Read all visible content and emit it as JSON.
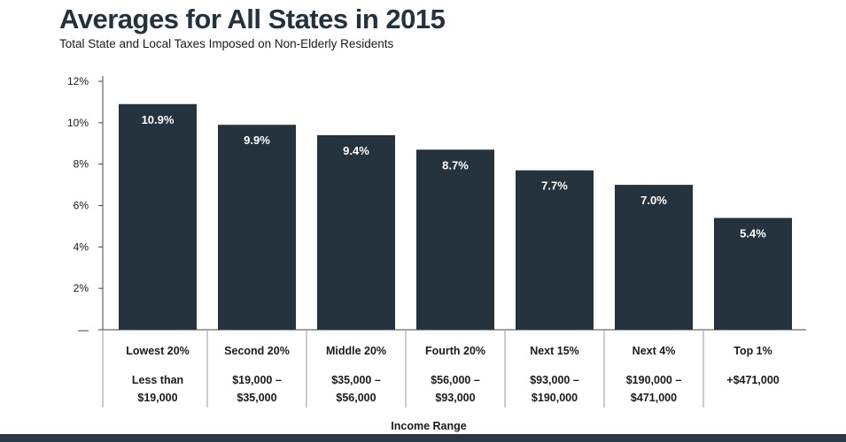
{
  "chart_data": {
    "type": "bar",
    "title": "Averages for All States in 2015",
    "subtitle": "Total State and Local Taxes Imposed on Non-Elderly Residents",
    "xlabel": "Income Range",
    "ylabel": "",
    "ylim": [
      0,
      12
    ],
    "yticks": [
      "—",
      "2%",
      "4%",
      "6%",
      "8%",
      "10%",
      "12%"
    ],
    "categories": [
      "Lowest 20%",
      "Second 20%",
      "Middle 20%",
      "Fourth 20%",
      "Next 15%",
      "Next 4%",
      "Top 1%"
    ],
    "category_ranges": [
      [
        "Less than",
        "$19,000"
      ],
      [
        "$19,000 –",
        "$35,000"
      ],
      [
        "$35,000 –",
        "$56,000"
      ],
      [
        "$56,000 –",
        "$93,000"
      ],
      [
        "$93,000 –",
        "$190,000"
      ],
      [
        "$190,000 –",
        "$471,000"
      ],
      [
        "+$471,000"
      ]
    ],
    "values": [
      10.9,
      9.9,
      9.4,
      8.7,
      7.7,
      7.0,
      5.4
    ],
    "data_labels": [
      "10.9%",
      "9.9%",
      "9.4%",
      "8.7%",
      "7.7%",
      "7.0%",
      "5.4%"
    ],
    "grid": false,
    "legend": "none"
  },
  "colors": {
    "title": "#24323c",
    "bar": "#24333d",
    "bar_label": "#ffffff",
    "axis": "#444444",
    "text": "#1a1a1a",
    "bottom_band": "#2a3a44"
  }
}
